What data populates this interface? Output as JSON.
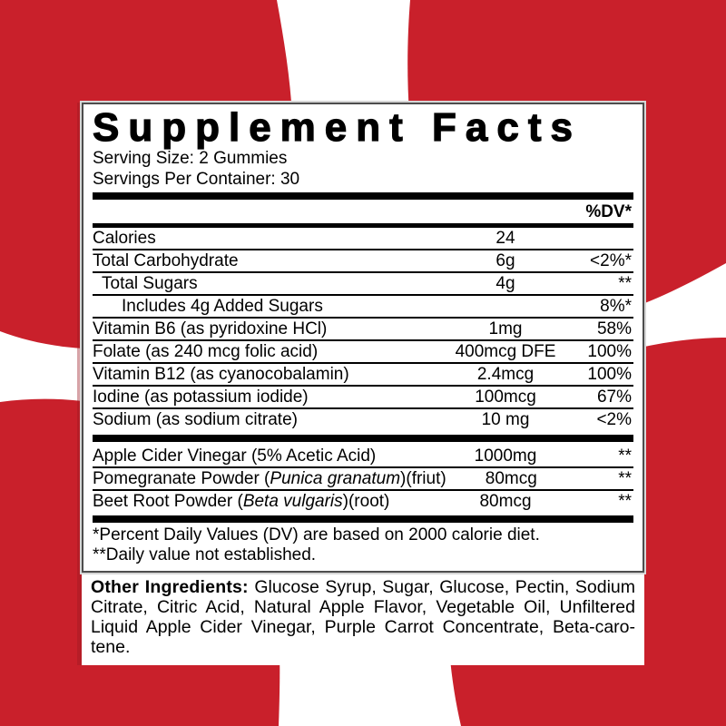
{
  "colors": {
    "red": "#c9202b",
    "white": "#ffffff",
    "bar": "#000000"
  },
  "panel": {
    "title": "Supplement Facts",
    "serving_size": "Serving Size: 2 Gummies",
    "servings_per_container": "Servings Per Container: 30",
    "dv_header": "%DV*",
    "nutrients": [
      {
        "name": "Calories",
        "amount": "24",
        "dv": "",
        "indent": 0
      },
      {
        "name": "Total Carbohydrate",
        "amount": "6g",
        "dv": "<2%*",
        "indent": 0
      },
      {
        "name": "Total Sugars",
        "amount": "4g",
        "dv": "**",
        "indent": 1
      },
      {
        "name": "Includes 4g Added Sugars",
        "amount": "",
        "dv": "8%*",
        "indent": 2
      },
      {
        "name": "Vitamin B6 (as pyridoxine HCl)",
        "amount": "1mg",
        "dv": "58%",
        "indent": 0
      },
      {
        "name": "Folate (as 240 mcg folic acid)",
        "amount": "400mcg DFE",
        "dv": "100%",
        "indent": 0
      },
      {
        "name": "Vitamin B12 (as cyanocobalamin)",
        "amount": "2.4mcg",
        "dv": "100%",
        "indent": 0
      },
      {
        "name": "Iodine (as potassium iodide)",
        "amount": "100mcg",
        "dv": "67%",
        "indent": 0
      },
      {
        "name": "Sodium (as sodium citrate)",
        "amount": "10 mg",
        "dv": "<2%",
        "indent": 0
      }
    ],
    "botanicals": [
      {
        "plain": "Apple Cider Vinegar (5% Acetic Acid)",
        "italic": "",
        "suffix": "",
        "amount": "1000mg",
        "dv": "**"
      },
      {
        "plain": "Pomegranate Powder (",
        "italic": "Punica granatum",
        "suffix": ")(friut)",
        "amount": "80mcg",
        "dv": "**"
      },
      {
        "plain": "Beet Root Powder (",
        "italic": "Beta vulgaris",
        "suffix": ")(root)",
        "amount": "80mcg",
        "dv": "**"
      }
    ],
    "footnotes": [
      "*Percent Daily Values (DV) are based on 2000 calorie diet.",
      "**Daily value not established."
    ]
  },
  "other_ingredients": {
    "label": "Other Ingredients:",
    "line1_rest": "Glucose Syrup, Sugar, Glucose, Pectin, Sodium",
    "lines": [
      "Citrate, Citric Acid, Natural Apple Flavor, Vegetable Oil, Unfiltered",
      "Liquid Apple Cider Vinegar, Purple Carrot Concentrate, Beta-caro-",
      "tene."
    ]
  }
}
